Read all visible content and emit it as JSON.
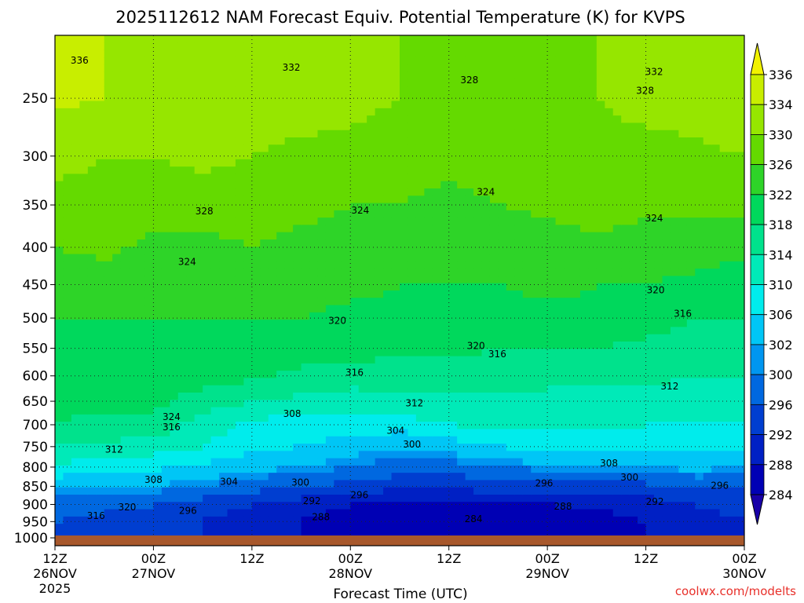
{
  "chart_data": {
    "type": "heatmap",
    "title": "2025112612 NAM Forecast Equiv. Potential Temperature (K) for KVPS",
    "xlabel": "Forecast Time (UTC)",
    "ylabel": "",
    "credit": "coolwx.com/modelts",
    "x_ticks": [
      {
        "hours": 0,
        "time": "12Z",
        "date": "26NOV",
        "year": "2025"
      },
      {
        "hours": 12,
        "time": "00Z",
        "date": "27NOV",
        "year": ""
      },
      {
        "hours": 24,
        "time": "12Z",
        "date": "",
        "year": ""
      },
      {
        "hours": 36,
        "time": "00Z",
        "date": "28NOV",
        "year": ""
      },
      {
        "hours": 48,
        "time": "12Z",
        "date": "",
        "year": ""
      },
      {
        "hours": 60,
        "time": "00Z",
        "date": "29NOV",
        "year": ""
      },
      {
        "hours": 72,
        "time": "12Z",
        "date": "",
        "year": ""
      },
      {
        "hours": 84,
        "time": "00Z",
        "date": "30NOV",
        "year": ""
      }
    ],
    "xlim": [
      0,
      84
    ],
    "y_ticks": [
      250,
      300,
      350,
      400,
      450,
      500,
      550,
      600,
      650,
      700,
      750,
      800,
      850,
      900,
      950,
      1000
    ],
    "y_tick_labels": [
      "250",
      "300",
      "350",
      "400",
      "450",
      "500",
      "550",
      "600",
      "650",
      "700",
      "750",
      "800",
      "850",
      "900",
      "950",
      "1000"
    ],
    "ylim": [
      1025,
      205
    ],
    "y_scale": "log",
    "grid": true,
    "colorbar": {
      "labels": [
        "336",
        "334",
        "330",
        "326",
        "322",
        "318",
        "314",
        "310",
        "306",
        "302",
        "300",
        "296",
        "292",
        "288",
        "284"
      ],
      "colors": [
        "#f2f200",
        "#c8ee00",
        "#96e600",
        "#64da00",
        "#2ed428",
        "#00d85c",
        "#00e28c",
        "#00eab8",
        "#00ecec",
        "#00c6f6",
        "#0096f0",
        "#0068e0",
        "#003ed0",
        "#0020c4",
        "#0000b4",
        "#1800a8"
      ]
    },
    "pressure_levels": [
      250,
      300,
      350,
      400,
      450,
      500,
      550,
      600,
      650,
      700,
      750,
      800,
      850,
      900,
      950,
      1000
    ],
    "columns": [
      {
        "h": 0,
        "theta_e": [
          335,
          331,
          329,
          326,
          324,
          322,
          321,
          320,
          319,
          318,
          314,
          309,
          303,
          298,
          296,
          296
        ]
      },
      {
        "h": 6,
        "theta_e": [
          334,
          330,
          329,
          327,
          324,
          322,
          321,
          320,
          319,
          317,
          313,
          308,
          303,
          297,
          295,
          295
        ]
      },
      {
        "h": 12,
        "theta_e": [
          333,
          330,
          328,
          325,
          323,
          322,
          321,
          320,
          319,
          317,
          312,
          307,
          302,
          296,
          295,
          294
        ]
      },
      {
        "h": 18,
        "theta_e": [
          333,
          331,
          328,
          325,
          324,
          322,
          321,
          320,
          316,
          312,
          310,
          305,
          300,
          294,
          292,
          292
        ]
      },
      {
        "h": 24,
        "theta_e": [
          332,
          330,
          328,
          326,
          324,
          322,
          321,
          319,
          314,
          309,
          307,
          303,
          298,
          292,
          290,
          290
        ]
      },
      {
        "h": 30,
        "theta_e": [
          332,
          329,
          327,
          325,
          324,
          322,
          320,
          317,
          313,
          308,
          306,
          302,
          296,
          290,
          288,
          288
        ]
      },
      {
        "h": 36,
        "theta_e": [
          331,
          329,
          326,
          325,
          323,
          321,
          320,
          316,
          312,
          308,
          304,
          300,
          295,
          288,
          286,
          286
        ]
      },
      {
        "h": 42,
        "theta_e": [
          330,
          328,
          326,
          324,
          322,
          321,
          319,
          316,
          313,
          308,
          302,
          298,
          293,
          287,
          285,
          285
        ]
      },
      {
        "h": 48,
        "theta_e": [
          329,
          327,
          325,
          323,
          322,
          321,
          319,
          316,
          313,
          310,
          304,
          298,
          293,
          287,
          284,
          284
        ]
      },
      {
        "h": 54,
        "theta_e": [
          330,
          328,
          326,
          323,
          322,
          320,
          318,
          316,
          313,
          311,
          306,
          300,
          294,
          288,
          285,
          285
        ]
      },
      {
        "h": 60,
        "theta_e": [
          329,
          328,
          327,
          324,
          323,
          321,
          318,
          315,
          313,
          311,
          307,
          301,
          294,
          288,
          286,
          286
        ]
      },
      {
        "h": 66,
        "theta_e": [
          330,
          329,
          328,
          325,
          322,
          321,
          318,
          315,
          313,
          311,
          308,
          302,
          295,
          289,
          286,
          286
        ]
      },
      {
        "h": 72,
        "theta_e": [
          331,
          329,
          327,
          324,
          322,
          320,
          317,
          315,
          313,
          310,
          308,
          302,
          295,
          290,
          288,
          288
        ]
      },
      {
        "h": 78,
        "theta_e": [
          332,
          329,
          327,
          324,
          321,
          318,
          316,
          314,
          312,
          310,
          307,
          303,
          297,
          292,
          291,
          291
        ]
      },
      {
        "h": 84,
        "theta_e": [
          334,
          330,
          327,
          323,
          320,
          318,
          316,
          314,
          312,
          310,
          307,
          302,
          297,
          293,
          292,
          292
        ]
      }
    ],
    "contour_labels": [
      {
        "text": "336",
        "h": 3.0,
        "p": 222
      },
      {
        "text": "332",
        "h": 28.8,
        "p": 227
      },
      {
        "text": "328",
        "h": 50.5,
        "p": 236
      },
      {
        "text": "332",
        "h": 73.0,
        "p": 230
      },
      {
        "text": "328",
        "h": 71.9,
        "p": 244
      },
      {
        "text": "328",
        "h": 18.2,
        "p": 357
      },
      {
        "text": "324",
        "h": 37.2,
        "p": 356
      },
      {
        "text": "324",
        "h": 52.5,
        "p": 336
      },
      {
        "text": "324",
        "h": 73.0,
        "p": 365
      },
      {
        "text": "324",
        "h": 16.1,
        "p": 419
      },
      {
        "text": "320",
        "h": 73.2,
        "p": 458
      },
      {
        "text": "316",
        "h": 76.5,
        "p": 493
      },
      {
        "text": "320",
        "h": 34.4,
        "p": 504
      },
      {
        "text": "320",
        "h": 51.3,
        "p": 546
      },
      {
        "text": "316",
        "h": 53.9,
        "p": 560
      },
      {
        "text": "316",
        "h": 36.5,
        "p": 594
      },
      {
        "text": "312",
        "h": 43.8,
        "p": 654
      },
      {
        "text": "312",
        "h": 74.9,
        "p": 620
      },
      {
        "text": "324",
        "h": 14.2,
        "p": 683
      },
      {
        "text": "316",
        "h": 14.2,
        "p": 705
      },
      {
        "text": "308",
        "h": 28.9,
        "p": 676
      },
      {
        "text": "304",
        "h": 41.5,
        "p": 713
      },
      {
        "text": "312",
        "h": 7.2,
        "p": 757
      },
      {
        "text": "300",
        "h": 43.5,
        "p": 745
      },
      {
        "text": "308",
        "h": 67.5,
        "p": 790
      },
      {
        "text": "300",
        "h": 70.0,
        "p": 826
      },
      {
        "text": "308",
        "h": 12.0,
        "p": 833
      },
      {
        "text": "304",
        "h": 21.2,
        "p": 838
      },
      {
        "text": "300",
        "h": 29.9,
        "p": 840
      },
      {
        "text": "296",
        "h": 37.1,
        "p": 874
      },
      {
        "text": "292",
        "h": 31.3,
        "p": 890
      },
      {
        "text": "288",
        "h": 32.4,
        "p": 937
      },
      {
        "text": "296",
        "h": 59.6,
        "p": 842
      },
      {
        "text": "292",
        "h": 73.1,
        "p": 892
      },
      {
        "text": "288",
        "h": 61.9,
        "p": 906
      },
      {
        "text": "284",
        "h": 51.0,
        "p": 942
      },
      {
        "text": "296",
        "h": 81.0,
        "p": 848
      },
      {
        "text": "316",
        "h": 5.0,
        "p": 933
      },
      {
        "text": "320",
        "h": 8.8,
        "p": 908
      },
      {
        "text": "296",
        "h": 16.2,
        "p": 918
      }
    ]
  }
}
